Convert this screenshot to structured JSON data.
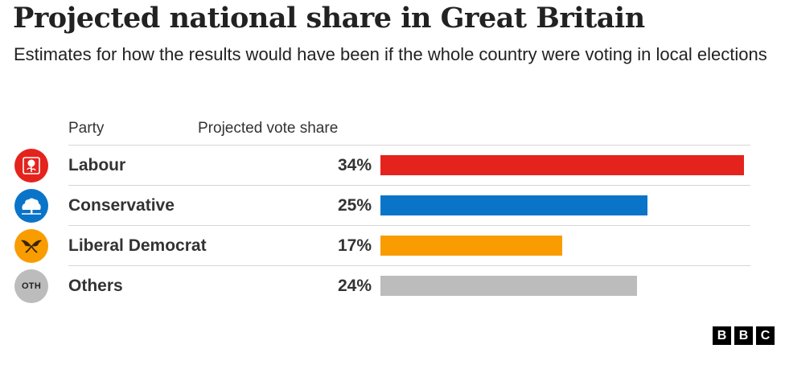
{
  "title": "Projected national share in Great Britain",
  "subtitle": "Estimates for how the results would have been if the whole country were voting in local elections",
  "headers": {
    "party": "Party",
    "share": "Projected vote share"
  },
  "chart_data": {
    "type": "bar",
    "orientation": "horizontal",
    "title": "Projected national share in Great Britain",
    "subtitle": "Estimates for how the results would have been if the whole country were voting in local elections",
    "categories": [
      "Labour",
      "Conservative",
      "Liberal Democrat",
      "Others"
    ],
    "values": [
      34,
      25,
      17,
      24
    ],
    "value_labels": [
      "34%",
      "25%",
      "17%",
      "24%"
    ],
    "colors": [
      "#e4231d",
      "#0a74c8",
      "#f99c00",
      "#bcbcbc"
    ],
    "xlim": [
      0,
      34
    ],
    "grid": false,
    "legend": "none"
  },
  "parties": [
    {
      "name": "Labour",
      "icon": "rose-icon",
      "badge_color": "#e4231d"
    },
    {
      "name": "Conservative",
      "icon": "tree-icon",
      "badge_color": "#0a74c8"
    },
    {
      "name": "Liberal Democrat",
      "icon": "bird-icon",
      "badge_color": "#f99c00"
    },
    {
      "name": "Others",
      "icon": "oth-badge-icon",
      "badge_color": "#bcbcbc",
      "badge_text": "OTH"
    }
  ],
  "logo": [
    "B",
    "B",
    "C"
  ]
}
